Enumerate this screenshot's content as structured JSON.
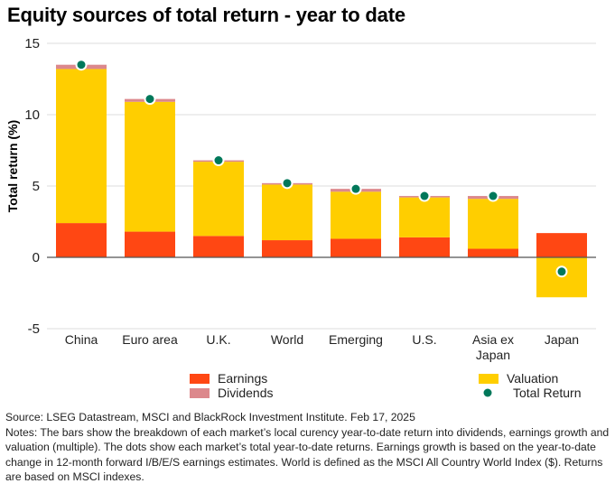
{
  "title": "Equity sources of total return - year to date",
  "source": "Source: LSEG Datastream, MSCI and BlackRock Investment Institute. Feb 17, 2025",
  "notes": "Notes: The bars show the breakdown of each market’s local curency year-to-date return into dividends, earnings growth and valuation (multiple). The dots show each market’s total year-to-date returns. Earnings growth is based on the year-to-date change in 12-month forward I/B/E/S earnings estimates. World is defined as the MSCI All Country World Index ($). Returns are based on MSCI indexes.",
  "colors": {
    "earnings": "#ff4713",
    "valuation": "#ffce00",
    "dividends": "#dc888c",
    "total_return": "#00785a",
    "grid": "#dcdcdc",
    "zero_line": "#555555"
  },
  "chart_data": {
    "type": "bar",
    "stacked": true,
    "title": "Equity sources of total return - year to date",
    "xlabel": "",
    "ylabel": "Total return (%)",
    "ylim": [
      -5,
      15
    ],
    "yticks": [
      -5,
      0,
      5,
      10,
      15
    ],
    "categories": [
      "China",
      "Euro area",
      "U.K.",
      "World",
      "Emerging",
      "U.S.",
      "Asia ex Japan",
      "Japan"
    ],
    "series": [
      {
        "name": "Earnings",
        "key": "earnings",
        "values": [
          2.4,
          1.8,
          1.5,
          1.2,
          1.3,
          1.4,
          0.6,
          1.7
        ]
      },
      {
        "name": "Valuation",
        "key": "valuation",
        "values": [
          10.8,
          9.1,
          5.2,
          3.9,
          3.3,
          2.8,
          3.5,
          -2.8
        ]
      },
      {
        "name": "Dividends",
        "key": "dividends",
        "values": [
          0.3,
          0.2,
          0.1,
          0.1,
          0.2,
          0.1,
          0.2,
          0.0
        ]
      },
      {
        "name": "Total Return",
        "key": "total_return",
        "type": "dot",
        "values": [
          13.5,
          11.1,
          6.8,
          5.2,
          4.8,
          4.3,
          4.3,
          -1.0
        ]
      }
    ],
    "legend": [
      {
        "label": "Earnings",
        "key": "earnings",
        "marker": "square"
      },
      {
        "label": "Dividends",
        "key": "dividends",
        "marker": "square"
      },
      {
        "label": "Valuation",
        "key": "valuation",
        "marker": "square"
      },
      {
        "label": "Total Return",
        "key": "total_return",
        "marker": "dot"
      }
    ],
    "grid": true,
    "legend_position": "bottom"
  }
}
